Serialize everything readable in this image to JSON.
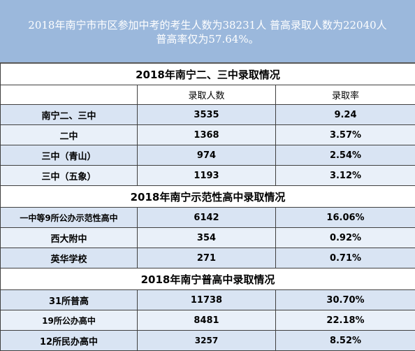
{
  "banner": {
    "line1": "2018年南宁市市区参加中考的考生人数为38231人 普高录取人数为22040人",
    "line2": "普高率仅为57.64%。"
  },
  "sections": [
    {
      "title": "2018年南宁二、三中录取情况",
      "columns": [
        "",
        "录取人数",
        "录取率"
      ],
      "rows": [
        {
          "name": "南宁二、三中",
          "count": "3535",
          "rate": "9.24"
        },
        {
          "name": "二中",
          "count": "1368",
          "rate": "3.57%"
        },
        {
          "name": "三中（青山）",
          "count": "974",
          "rate": "2.54%"
        },
        {
          "name": "三中（五象）",
          "count": "1193",
          "rate": "3.12%"
        }
      ]
    },
    {
      "title": "2018年南宁示范性高中录取情况",
      "rows": [
        {
          "name": "一中等9所公办示范性高中",
          "count": "6142",
          "rate": "16.06%"
        },
        {
          "name": "西大附中",
          "count": "354",
          "rate": "0.92%"
        },
        {
          "name": "英华学校",
          "count": "271",
          "rate": "0.71%"
        }
      ]
    },
    {
      "title": "2018年南宁普高中录取情况",
      "rows": [
        {
          "name": "31所普高",
          "count": "11738",
          "rate": "30.70%"
        },
        {
          "name": "19所公办高中",
          "count": "8481",
          "rate": "22.18%"
        },
        {
          "name": "12所民办高中",
          "count": "3257",
          "rate": "8.52%"
        }
      ]
    }
  ],
  "colors": {
    "banner_bg": "#9bb8dc",
    "row_band": "#d9e4f3",
    "border": "#404040"
  }
}
